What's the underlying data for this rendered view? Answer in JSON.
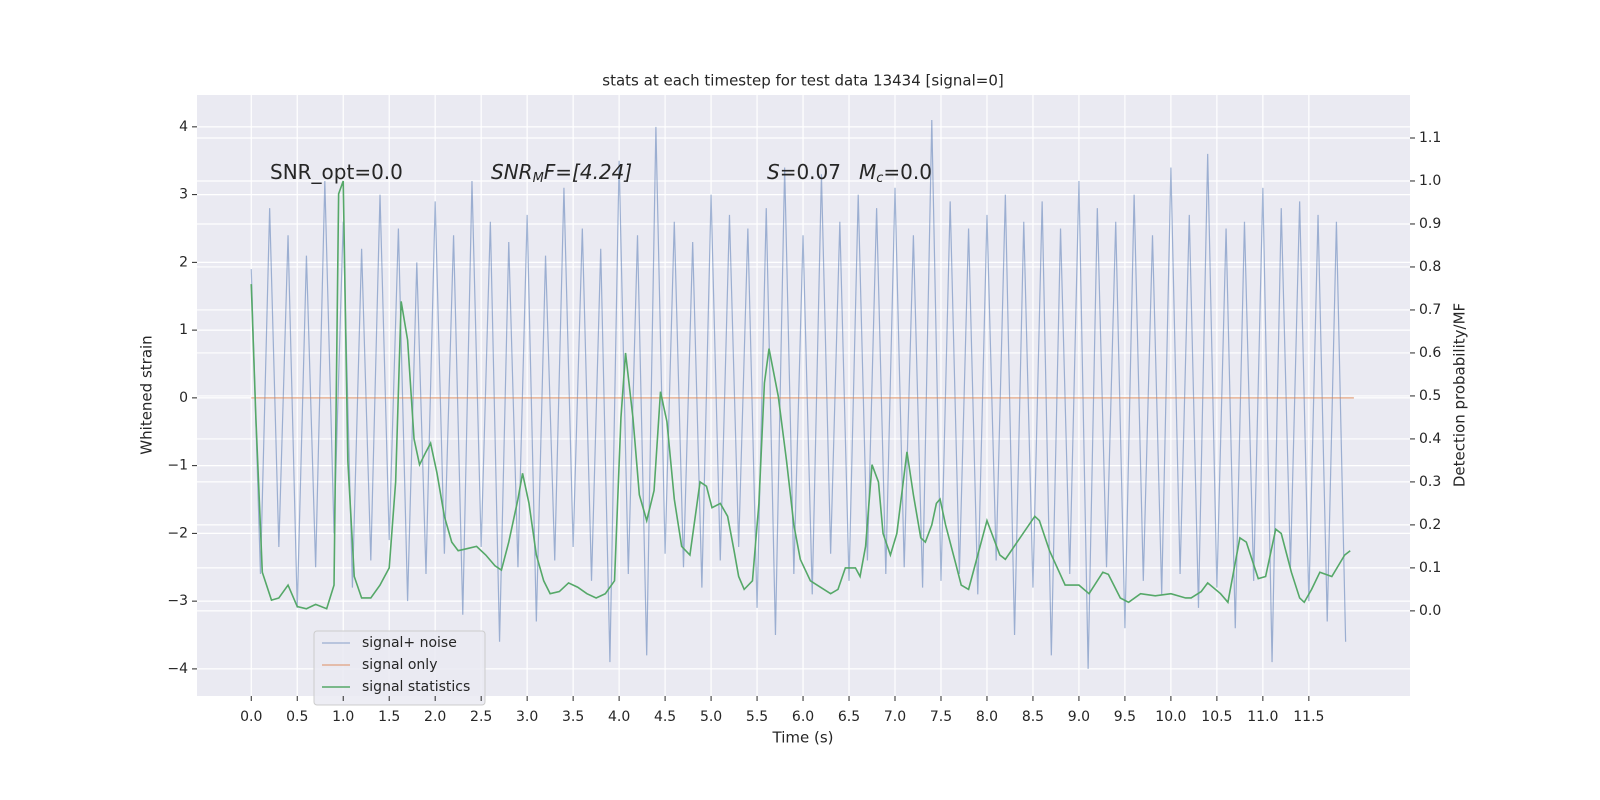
{
  "chart_data": {
    "type": "line",
    "title": "stats at each timestep for test data 13434 [signal=0]",
    "x_label": "Time (s)",
    "y_label": "Whitened strain",
    "y2_label": "Detection probability/MF",
    "annotations": [
      [
        "SNR_opt=0.0"
      ],
      [
        "SNR",
        "M",
        "F=[4.24]"
      ],
      [
        "S",
        "=0.07"
      ],
      [
        "M",
        "c",
        "=0.0"
      ]
    ],
    "xlim": [
      -0.59,
      12.6
    ],
    "xticks": [
      {
        "value": 0,
        "label": "0.0"
      },
      {
        "value": 0.5,
        "label": "0.5"
      },
      {
        "value": 1,
        "label": "1.0"
      },
      {
        "value": 1.5,
        "label": "1.5"
      },
      {
        "value": 2,
        "label": "2.0"
      },
      {
        "value": 2.5,
        "label": "2.5"
      },
      {
        "value": 3,
        "label": "3.0"
      },
      {
        "value": 3.5,
        "label": "3.5"
      },
      {
        "value": 4,
        "label": "4.0"
      },
      {
        "value": 4.5,
        "label": "4.5"
      },
      {
        "value": 5,
        "label": "5.0"
      },
      {
        "value": 5.5,
        "label": "5.5"
      },
      {
        "value": 6,
        "label": "6.0"
      },
      {
        "value": 6.5,
        "label": "6.5"
      },
      {
        "value": 7,
        "label": "7.0"
      },
      {
        "value": 7.5,
        "label": "7.5"
      },
      {
        "value": 8,
        "label": "8.0"
      },
      {
        "value": 8.5,
        "label": "8.5"
      },
      {
        "value": 9,
        "label": "9.0"
      },
      {
        "value": 9.5,
        "label": "9.5"
      },
      {
        "value": 10,
        "label": "10.0"
      },
      {
        "value": 10.5,
        "label": "10.5"
      },
      {
        "value": 11,
        "label": "11.0"
      },
      {
        "value": 11.5,
        "label": "11.5"
      }
    ],
    "ylim": [
      -4.4,
      4.47
    ],
    "yticks": [
      {
        "value": -4,
        "label": "−4"
      },
      {
        "value": -3,
        "label": "−3"
      },
      {
        "value": -2,
        "label": "−2"
      },
      {
        "value": -1,
        "label": "−1"
      },
      0,
      1,
      2,
      3,
      4
    ],
    "y2lim": [
      -0.198,
      1.2
    ],
    "y2ticks": [
      {
        "value": 0,
        "label": "0.0"
      },
      {
        "value": 0.1,
        "label": "0.1"
      },
      {
        "value": 0.2,
        "label": "0.2"
      },
      {
        "value": 0.3,
        "label": "0.3"
      },
      {
        "value": 0.4,
        "label": "0.4"
      },
      {
        "value": 0.5,
        "label": "0.5"
      },
      {
        "value": 0.6,
        "label": "0.6"
      },
      {
        "value": 0.7,
        "label": "0.7"
      },
      {
        "value": 0.8,
        "label": "0.8"
      },
      {
        "value": 0.9,
        "label": "0.9"
      },
      {
        "value": 1,
        "label": "1.0"
      },
      {
        "value": 1.1,
        "label": "1.1"
      }
    ],
    "grid": true,
    "legend": "lower left",
    "series": [
      {
        "name": "signal+ noise",
        "color": "#4c72b0",
        "x": [
          0.0,
          0.1,
          0.2,
          0.3,
          0.4,
          0.5,
          0.6,
          0.7,
          0.8,
          0.9,
          1.0,
          1.1,
          1.2,
          1.3,
          1.4,
          1.5,
          1.6,
          1.7,
          1.8,
          1.9,
          2.0,
          2.1,
          2.2,
          2.3,
          2.4,
          2.5,
          2.6,
          2.7,
          2.8,
          2.9,
          3.0,
          3.1,
          3.2,
          3.3,
          3.4,
          3.5,
          3.6,
          3.7,
          3.8,
          3.9,
          4.0,
          4.1,
          4.2,
          4.3,
          4.4,
          4.5,
          4.6,
          4.7,
          4.8,
          4.9,
          5.0,
          5.1,
          5.2,
          5.3,
          5.4,
          5.5,
          5.6,
          5.7,
          5.8,
          5.9,
          6.0,
          6.1,
          6.2,
          6.3,
          6.4,
          6.5,
          6.6,
          6.7,
          6.8,
          6.9,
          7.0,
          7.1,
          7.2,
          7.3,
          7.4,
          7.5,
          7.6,
          7.7,
          7.8,
          7.9,
          8.0,
          8.1,
          8.2,
          8.3,
          8.4,
          8.5,
          8.6,
          8.7,
          8.8,
          8.9,
          9.0,
          9.1,
          9.2,
          9.3,
          9.4,
          9.5,
          9.6,
          9.7,
          9.8,
          9.9,
          10.0,
          10.1,
          10.2,
          10.3,
          10.4,
          10.5,
          10.6,
          10.7,
          10.8,
          10.9,
          11.0,
          11.1,
          11.2,
          11.3,
          11.4,
          11.5,
          11.6,
          11.7,
          11.8,
          11.9
        ],
        "values": [
          1.9,
          -2.6,
          2.8,
          -2.2,
          2.4,
          -3.1,
          2.1,
          -2.5,
          3.2,
          -2.0,
          2.6,
          -2.8,
          2.2,
          -2.4,
          3.0,
          -2.1,
          2.5,
          -3.0,
          2.0,
          -2.6,
          2.9,
          -2.3,
          2.4,
          -3.2,
          3.2,
          -2.2,
          2.6,
          -3.6,
          2.3,
          -2.5,
          2.7,
          -3.3,
          2.1,
          -2.4,
          3.1,
          -2.2,
          2.5,
          -2.7,
          2.2,
          -3.9,
          3.5,
          -2.6,
          2.4,
          -3.8,
          4.0,
          -2.3,
          2.6,
          -2.5,
          2.3,
          -2.8,
          3.0,
          -2.4,
          2.7,
          -2.2,
          2.5,
          -3.1,
          2.8,
          -3.5,
          3.4,
          -2.6,
          2.4,
          -2.9,
          3.3,
          -2.3,
          2.6,
          -2.7,
          3.0,
          -2.4,
          2.8,
          -2.6,
          3.1,
          -2.5,
          2.4,
          -2.8,
          4.1,
          -2.7,
          2.9,
          -2.6,
          2.5,
          -2.9,
          2.7,
          -2.4,
          3.0,
          -3.5,
          2.6,
          -2.8,
          2.9,
          -3.8,
          2.5,
          -2.6,
          3.2,
          -4.0,
          2.8,
          -2.5,
          2.6,
          -3.4,
          3.0,
          -2.7,
          2.4,
          -2.9,
          3.4,
          -2.6,
          2.7,
          -3.1,
          3.6,
          -2.8,
          2.5,
          -3.4,
          2.6,
          -2.7,
          3.1,
          -3.9,
          2.8,
          -2.5,
          2.9,
          -3.0,
          2.7,
          -3.3,
          2.6,
          -3.6
        ]
      },
      {
        "name": "signal only",
        "color": "#dd8452",
        "x": [
          0.0,
          11.99
        ],
        "values": [
          0,
          0
        ]
      },
      {
        "name": "signal statistics",
        "color": "#55a868",
        "axis": "y2",
        "x": [
          0.0,
          0.05,
          0.12,
          0.22,
          0.3,
          0.4,
          0.5,
          0.6,
          0.7,
          0.82,
          0.9,
          0.95,
          1.0,
          1.05,
          1.12,
          1.2,
          1.3,
          1.4,
          1.5,
          1.57,
          1.63,
          1.7,
          1.77,
          1.83,
          1.9,
          1.95,
          2.02,
          2.1,
          2.18,
          2.25,
          2.35,
          2.45,
          2.55,
          2.65,
          2.72,
          2.8,
          2.9,
          2.95,
          3.02,
          3.1,
          3.18,
          3.25,
          3.35,
          3.45,
          3.55,
          3.65,
          3.75,
          3.85,
          3.95,
          4.02,
          4.07,
          4.15,
          4.22,
          4.3,
          4.38,
          4.45,
          4.52,
          4.6,
          4.68,
          4.77,
          4.88,
          4.95,
          5.01,
          5.1,
          5.18,
          5.25,
          5.3,
          5.36,
          5.45,
          5.52,
          5.58,
          5.63,
          5.73,
          5.82,
          5.9,
          5.97,
          6.08,
          6.3,
          6.38,
          6.46,
          6.57,
          6.62,
          6.68,
          6.75,
          6.82,
          6.87,
          6.95,
          7.02,
          7.13,
          7.2,
          7.28,
          7.33,
          7.4,
          7.45,
          7.49,
          7.55,
          7.66,
          7.72,
          7.8,
          8.0,
          8.14,
          8.2,
          8.52,
          8.57,
          8.68,
          8.85,
          9.0,
          9.11,
          9.26,
          9.32,
          9.45,
          9.54,
          9.67,
          9.83,
          10.0,
          10.16,
          10.22,
          10.33,
          10.4,
          10.54,
          10.62,
          10.75,
          10.82,
          10.95,
          11.03,
          11.14,
          11.2,
          11.31,
          11.4,
          11.45,
          11.53,
          11.62,
          11.75,
          11.89,
          11.95
        ],
        "values": [
          0.76,
          0.45,
          0.09,
          0.025,
          0.03,
          0.06,
          0.01,
          0.005,
          0.015,
          0.005,
          0.06,
          0.97,
          1.0,
          0.35,
          0.08,
          0.03,
          0.03,
          0.06,
          0.1,
          0.3,
          0.72,
          0.63,
          0.4,
          0.34,
          0.37,
          0.39,
          0.32,
          0.22,
          0.16,
          0.14,
          0.145,
          0.15,
          0.13,
          0.105,
          0.095,
          0.16,
          0.26,
          0.32,
          0.25,
          0.13,
          0.07,
          0.04,
          0.045,
          0.065,
          0.055,
          0.04,
          0.03,
          0.04,
          0.07,
          0.45,
          0.6,
          0.45,
          0.27,
          0.21,
          0.28,
          0.51,
          0.44,
          0.26,
          0.15,
          0.13,
          0.3,
          0.29,
          0.24,
          0.25,
          0.22,
          0.14,
          0.08,
          0.05,
          0.07,
          0.25,
          0.53,
          0.61,
          0.5,
          0.35,
          0.2,
          0.12,
          0.07,
          0.04,
          0.05,
          0.1,
          0.1,
          0.08,
          0.15,
          0.34,
          0.3,
          0.18,
          0.13,
          0.18,
          0.37,
          0.27,
          0.17,
          0.16,
          0.2,
          0.25,
          0.26,
          0.2,
          0.11,
          0.06,
          0.05,
          0.21,
          0.13,
          0.12,
          0.22,
          0.21,
          0.14,
          0.06,
          0.06,
          0.04,
          0.09,
          0.085,
          0.03,
          0.02,
          0.04,
          0.035,
          0.04,
          0.03,
          0.03,
          0.045,
          0.065,
          0.04,
          0.02,
          0.17,
          0.16,
          0.075,
          0.08,
          0.19,
          0.18,
          0.09,
          0.03,
          0.02,
          0.05,
          0.09,
          0.08,
          0.13,
          0.14
        ]
      }
    ]
  }
}
